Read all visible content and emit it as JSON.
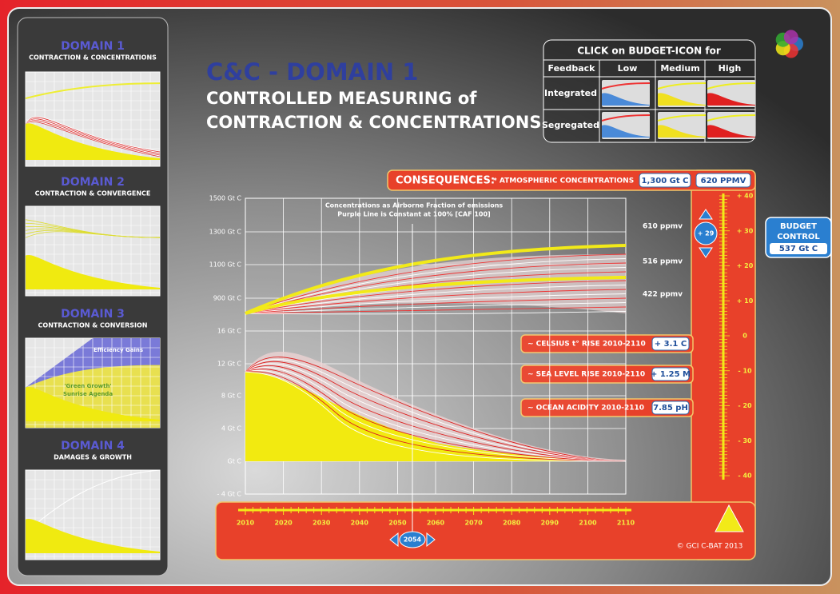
{
  "sidebar": {
    "domains": [
      {
        "title": "DOMAIN 1",
        "subtitle": "CONTRACTION & CONCENTRATIONS"
      },
      {
        "title": "DOMAIN 2",
        "subtitle": "CONTRACTION & CONVERGENCE"
      },
      {
        "title": "DOMAIN 3",
        "subtitle": "CONTRACTION & CONVERSION"
      },
      {
        "title": "DOMAIN 4",
        "subtitle": "DAMAGES & GROWTH"
      }
    ],
    "domain3_labels": [
      "Efficiency Gains",
      "'Green Growth'",
      "Sunrise Agenda"
    ]
  },
  "header": {
    "title": "C&C - DOMAIN 1",
    "subtitle_lines": [
      "CONTROLLED MEASURING of",
      "CONTRACTION & CONCENTRATIONS"
    ]
  },
  "budget_table": {
    "caption": "CLICK on BUDGET-ICON for",
    "columns": [
      "Feedback",
      "Low",
      "Medium",
      "High"
    ],
    "rows": [
      "Integrated",
      "Segregated"
    ]
  },
  "consequences": {
    "label": "CONSEQUENCES:",
    "concentrations_label": "* ATMOSPHERIC CONCENTRATIONS",
    "concentrations_gtc": "1,300 Gt C",
    "concentrations_ppmv": "620 PPMV",
    "indicators": [
      {
        "label": "~ CELSIUS t° RISE 2010-2110",
        "value": "+ 3.1 C"
      },
      {
        "label": "~ SEA LEVEL RISE 2010-2110",
        "value": "+ 1.25 M"
      },
      {
        "label": "~ OCEAN ACIDITY 2010-2110",
        "value": "7.85 pH"
      }
    ]
  },
  "chart": {
    "y_labels_upper": [
      "1500 Gt C",
      "1300 Gt C",
      "1100 Gt C",
      "900 Gt C"
    ],
    "y_labels_lower": [
      "16 Gt C",
      "12 Gt C",
      "8 Gt C",
      "4 Gt C",
      "Gt C",
      "- 4 Gt C"
    ],
    "note_lines": [
      "Concentrations as Airborne Fraction of emissions",
      "Purple Line is Constant at 100% [CAF 100]"
    ],
    "ppmv_labels": [
      "610 ppmv",
      "516 ppmv",
      "422 ppmv"
    ],
    "x_labels": [
      "2010",
      "2020",
      "2030",
      "2040",
      "2050",
      "2060",
      "2070",
      "2080",
      "2090",
      "2100",
      "2110"
    ]
  },
  "scale": {
    "labels": [
      "+ 40",
      "+ 30",
      "+ 20",
      "+ 10",
      "0",
      "- 10",
      "- 20",
      "- 30",
      "- 40"
    ],
    "slider": "+ 29"
  },
  "budget_control": {
    "label_lines": [
      "BUDGET",
      "CONTROL"
    ],
    "value": "537 Gt C"
  },
  "year_slider": "2054",
  "copyright": "© GCI C-BAT 2013"
}
